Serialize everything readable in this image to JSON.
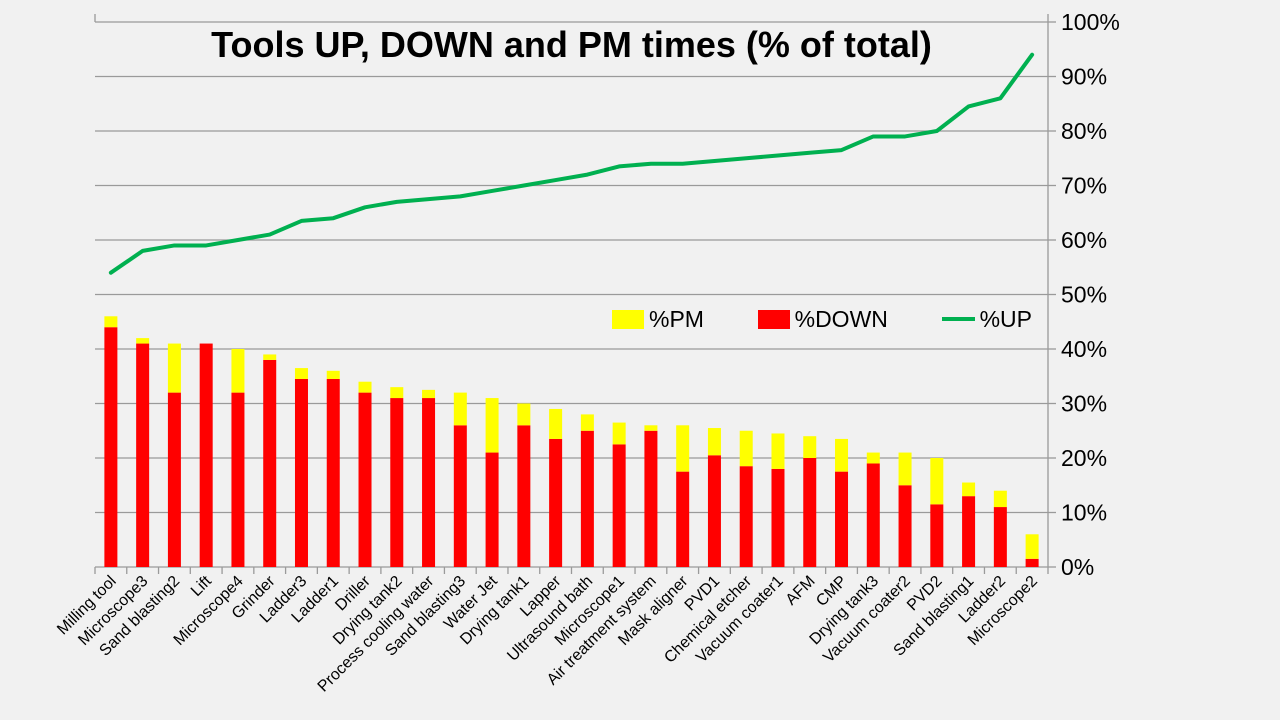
{
  "title": "Tools UP, DOWN and PM times (% of total)",
  "legend": {
    "pm_label": "%PM",
    "down_label": "%DOWN",
    "up_label": "%UP"
  },
  "colors": {
    "background": "#f1f1f1",
    "grid": "#9a9a9a",
    "axis": "#9a9a9a",
    "text": "#000000",
    "pm": "#ffff00",
    "down": "#ff0000",
    "up": "#00b050"
  },
  "chart_data": {
    "type": "bar",
    "subtype": "stacked-bars-with-line-overlay",
    "title": "Tools UP, DOWN and PM times (% of total)",
    "categories": [
      "Milling tool",
      "Microscope3",
      "Sand blasting2",
      "Lift",
      "Microscope4",
      "Grinder",
      "Ladder3",
      "Ladder1",
      "Driller",
      "Drying tank2",
      "Process cooling water",
      "Sand blasting3",
      "Water Jet",
      "Drying tank1",
      "Lapper",
      "Ultrasound bath",
      "Microscope1",
      "Air treatment system",
      "Mask aligner",
      "PVD1",
      "Chemical etcher",
      "Vacuum coater1",
      "AFM",
      "CMP",
      "Drying tank3",
      "Vacuum coater2",
      "PVD2",
      "Sand blasting1",
      "Ladder2",
      "Microscope2"
    ],
    "series": [
      {
        "name": "%DOWN",
        "role": "down",
        "type": "bar",
        "stacked": true,
        "color": "#ff0000",
        "values": [
          44,
          41,
          32,
          41,
          32,
          38,
          34.5,
          34.5,
          32,
          31,
          31,
          26,
          21,
          26,
          23.5,
          25,
          22.5,
          25,
          17.5,
          20.5,
          18.5,
          18,
          20,
          17.5,
          19,
          15,
          11.5,
          13,
          11,
          1.5
        ]
      },
      {
        "name": "%PM",
        "role": "pm",
        "type": "bar",
        "stacked": true,
        "color": "#ffff00",
        "values": [
          2,
          1,
          9,
          0,
          8,
          1,
          2,
          1.5,
          2,
          2,
          1.5,
          6,
          10,
          4,
          5.5,
          3,
          4,
          1,
          8.5,
          5,
          6.5,
          6.5,
          4,
          6,
          2,
          6,
          8.5,
          2.5,
          3,
          4.5
        ]
      },
      {
        "name": "%UP",
        "role": "up",
        "type": "line",
        "color": "#00b050",
        "values": [
          54,
          58,
          59,
          59,
          60,
          61,
          63.5,
          64,
          66,
          67,
          67.5,
          68,
          69,
          70,
          71,
          72,
          73.5,
          74,
          74,
          74.5,
          75,
          75.5,
          76,
          76.5,
          79,
          79,
          80,
          84.5,
          86,
          94
        ]
      }
    ],
    "xlabel": "",
    "ylabel": "",
    "ylim": [
      0,
      100
    ],
    "y_tick_step": 10,
    "y_ticks": [
      "0%",
      "10%",
      "20%",
      "30%",
      "40%",
      "50%",
      "60%",
      "70%",
      "80%",
      "90%",
      "100%"
    ],
    "x_tick_rotation": 45,
    "grid": true,
    "legend_position": "inside-center-right",
    "y_axis_side": "right"
  }
}
